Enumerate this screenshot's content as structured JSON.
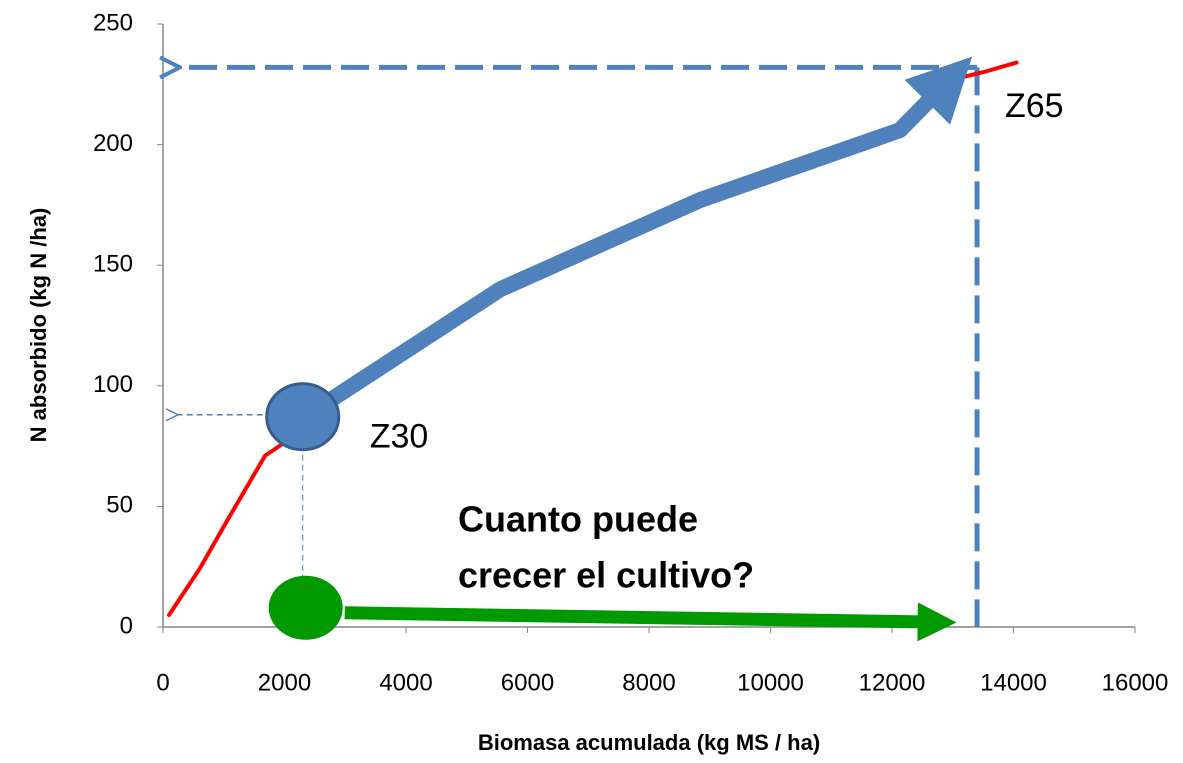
{
  "chart_data": {
    "type": "line",
    "x_label": "Biomasa acumulada  (kg MS / ha)",
    "y_label": "N absorbido  (kg N /ha)",
    "xlim": [
      0,
      16000
    ],
    "xticks": [
      0,
      2000,
      4000,
      6000,
      8000,
      10000,
      12000,
      14000,
      16000
    ],
    "ylim": [
      0,
      250
    ],
    "yticks": [
      0,
      50,
      100,
      150,
      200,
      250
    ],
    "series": [
      {
        "color": "#ff0000",
        "x": [
          100,
          600,
          1100,
          1680,
          2090,
          2300
        ],
        "values": [
          5,
          24,
          46,
          71,
          78,
          86
        ]
      },
      {
        "color": "#ff0000",
        "x": [
          13000,
          13500,
          14050
        ],
        "values": [
          227,
          230,
          234
        ]
      },
      {
        "color": "#4f81bd",
        "x": [
          2750,
          5550,
          8840,
          12130,
          12950
        ],
        "values": [
          94,
          140,
          177,
          206,
          227
        ]
      }
    ],
    "points": [
      {
        "label": "Z30",
        "x": 2300,
        "y": 88,
        "color": "#4f81bd"
      },
      {
        "label": "Z65",
        "x": 13400,
        "y": 232,
        "color": "#ff0000"
      }
    ],
    "green_arrow": {
      "color": "#009900",
      "x": [
        2300,
        13400
      ],
      "values": [
        3,
        2
      ],
      "text": [
        "Cuanto puede",
        "crecer el cultivo?"
      ]
    }
  }
}
